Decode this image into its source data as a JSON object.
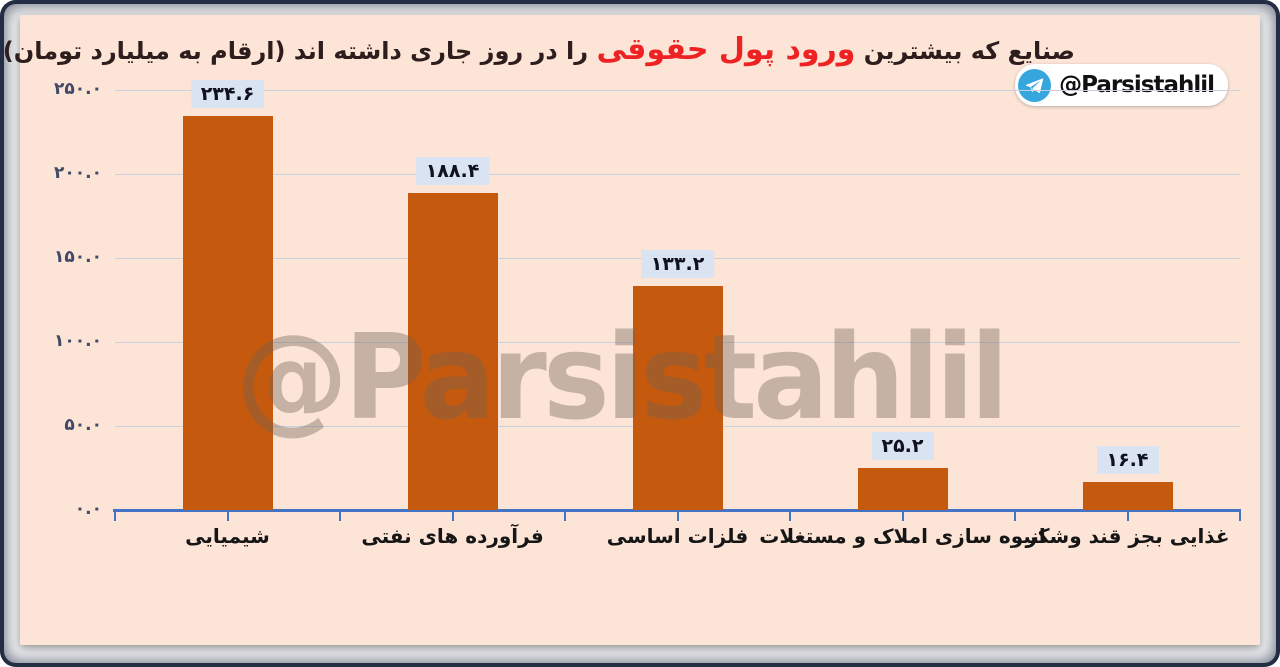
{
  "title": {
    "text_before": "صنایع که بیشترین",
    "highlight": "ورود پول حقوقی",
    "text_after": "را در روز جاری داشته اند (ارقام به میلیارد تومان)"
  },
  "telegram_badge": {
    "handle": "@Parsistahlil"
  },
  "watermark": {
    "text": "@Parsistahlil"
  },
  "colors": {
    "panel_background": "#fce4d6",
    "bar": "#c5590e",
    "axis": "#4472c4",
    "gridline": "#c9d1de",
    "value_label_background": "#dae3f1",
    "value_label_text": "#11121f",
    "title_text": "#2e1d1d",
    "title_highlight": "#ee2222",
    "y_tick_text": "#3f4a66",
    "x_label_text": "#161616",
    "frame": "#232d44",
    "telegram_blue": "#35a6de"
  },
  "chart_data": {
    "type": "bar",
    "title": "صنایع که بیشترین ورود پول حقوقی را در روز جاری داشته اند (ارقام به میلیارد تومان)",
    "unit_note": "ارقام به میلیارد تومان",
    "categories": [
      "شیمیایی",
      "فرآورده های نفتی",
      "فلزات اساسی",
      "انبوه سازی املاک و مستغلات",
      "غذایی بجز قند وشکر"
    ],
    "values": [
      234.6,
      188.4,
      133.2,
      25.2,
      16.4
    ],
    "bar_labels": [
      "۲۳۴.۶",
      "۱۸۸.۴",
      "۱۳۳.۲",
      "۲۵.۲",
      "۱۶.۴"
    ],
    "y_axis": {
      "min": 0,
      "max": 250,
      "step": 50,
      "tick_labels": [
        "۰.۰",
        "۵۰.۰",
        "۱۰۰.۰",
        "۱۵۰.۰",
        "۲۰۰.۰",
        "۲۵۰.۰"
      ]
    },
    "grid": true,
    "legend": false
  }
}
